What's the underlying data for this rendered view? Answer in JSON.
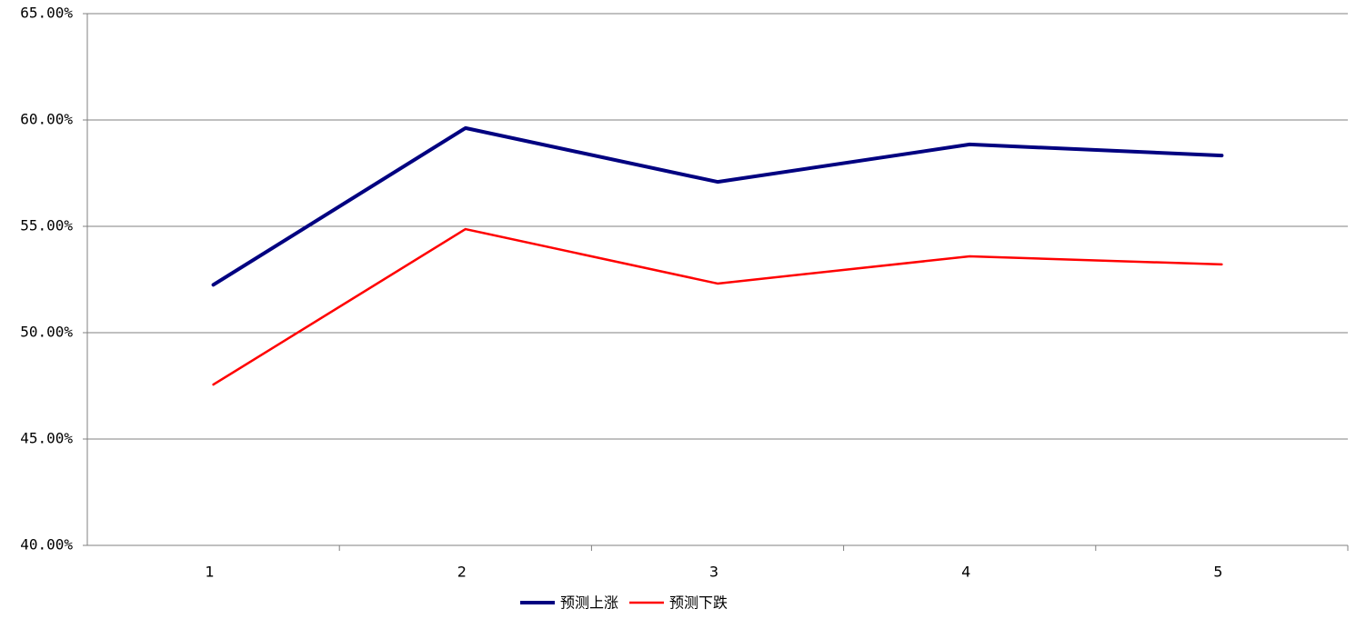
{
  "chart_data": {
    "type": "line",
    "categories": [
      "1",
      "2",
      "3",
      "4",
      "5"
    ],
    "series": [
      {
        "name": "预测上涨",
        "color": "#000080",
        "values": [
          52.25,
          59.62,
          57.09,
          58.85,
          58.33
        ]
      },
      {
        "name": "预测下跌",
        "color": "#ff0000",
        "values": [
          47.56,
          54.87,
          52.31,
          53.59,
          53.21
        ]
      }
    ],
    "ylim": [
      40,
      65
    ],
    "yticks": [
      {
        "value": 40,
        "label": "40.00%"
      },
      {
        "value": 45,
        "label": "45.00%"
      },
      {
        "value": 50,
        "label": "50.00%"
      },
      {
        "value": 55,
        "label": "55.00%"
      },
      {
        "value": 60,
        "label": "60.00%"
      },
      {
        "value": 65,
        "label": "65.00%"
      }
    ],
    "grid": true,
    "legend": "bottom"
  }
}
